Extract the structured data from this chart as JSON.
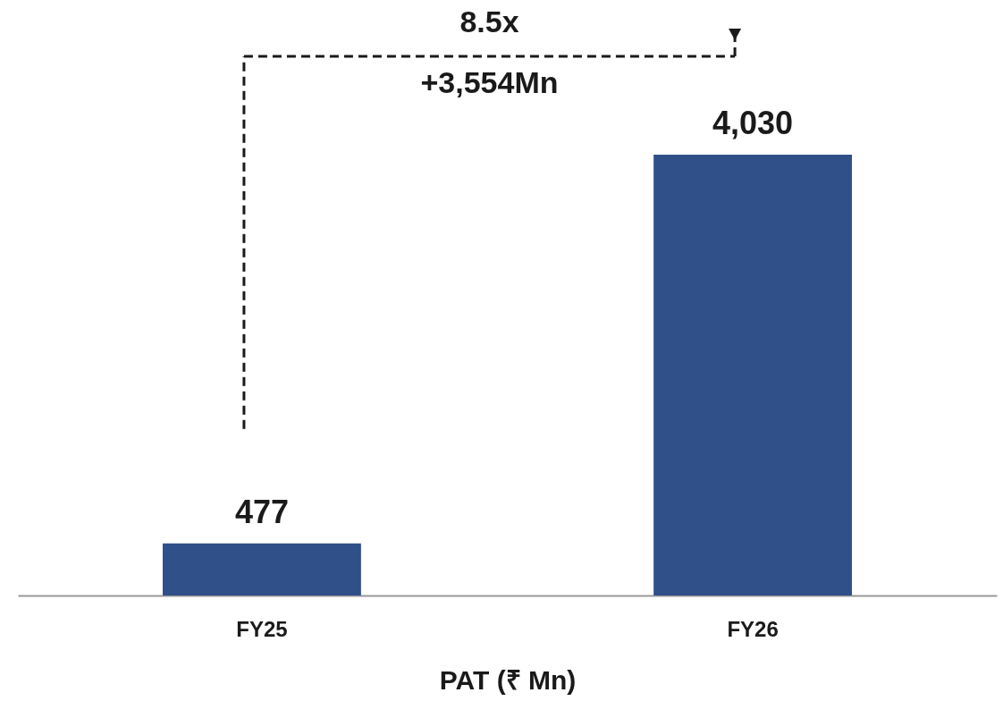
{
  "chart_data": {
    "type": "bar",
    "xlabel": "PAT (₹ Mn)",
    "categories": [
      "FY25",
      "FY26"
    ],
    "values": [
      477,
      4030
    ],
    "color": "#30508a",
    "value_labels": [
      "477",
      "4,030"
    ],
    "annotations": [
      "8.5x",
      "+3,554Mn"
    ]
  }
}
